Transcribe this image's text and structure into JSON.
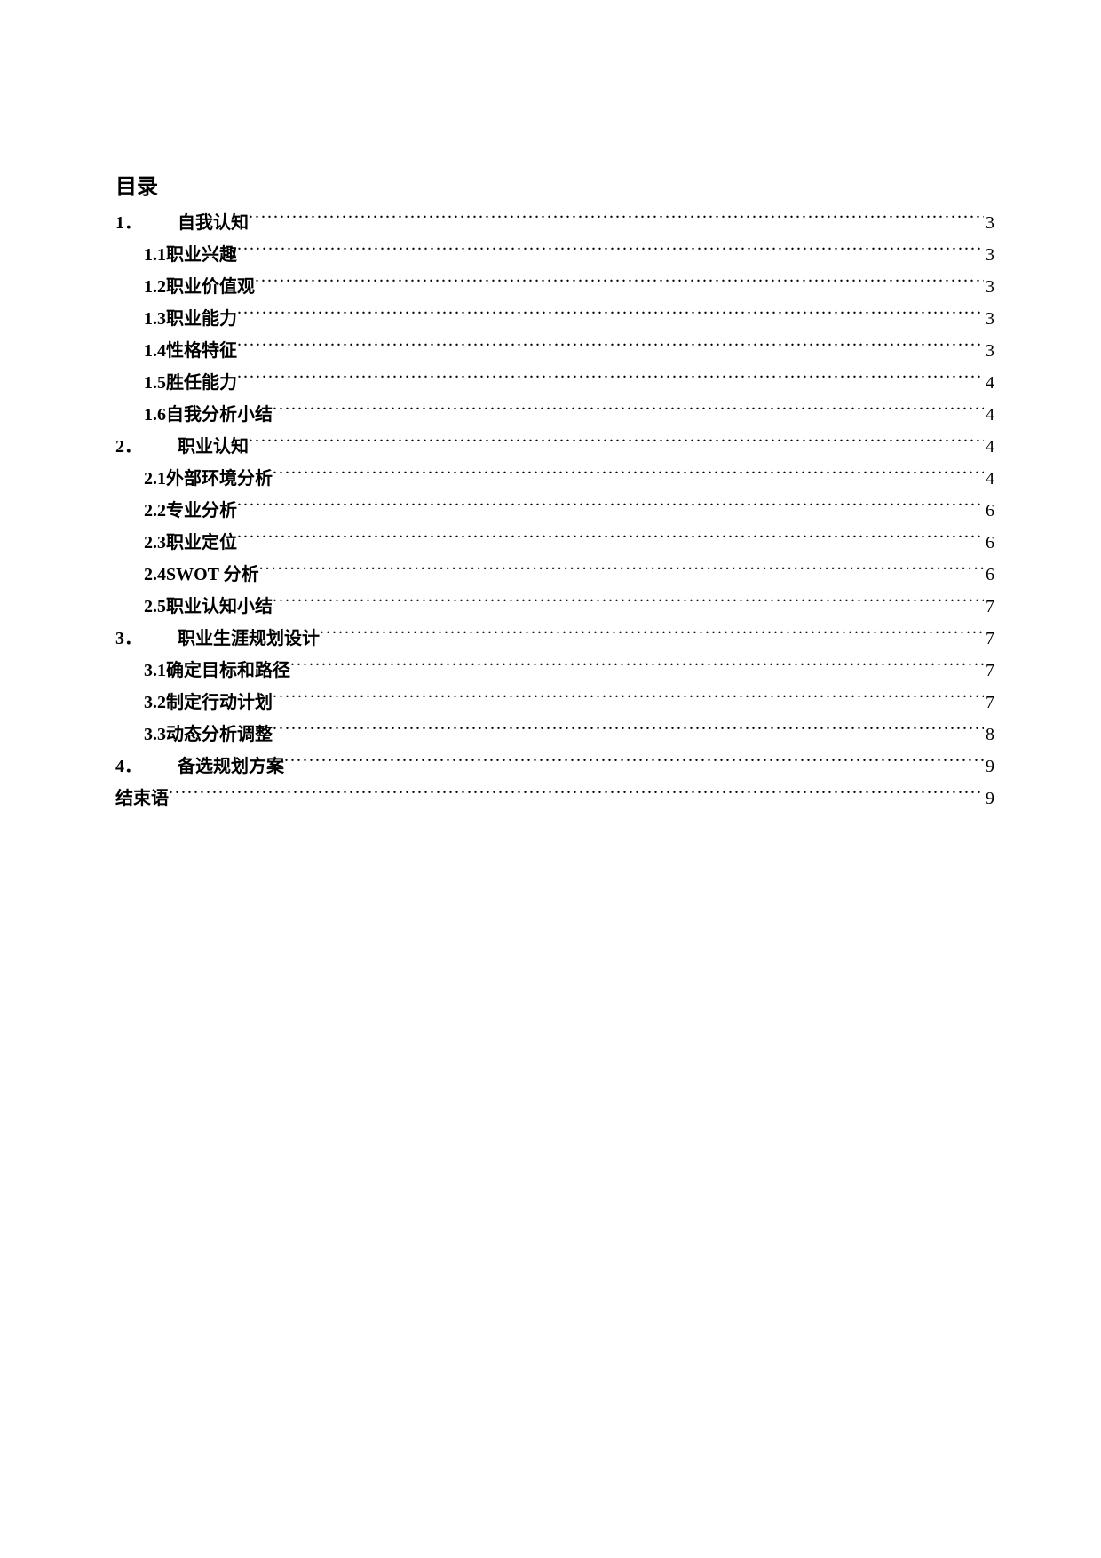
{
  "toc": {
    "title": "目录",
    "entries": [
      {
        "level": 1,
        "number": "1．",
        "text": "自我认知",
        "page": "3",
        "wideNumber": true
      },
      {
        "level": 2,
        "number": "1.1 ",
        "text": "职业兴趣",
        "page": "3"
      },
      {
        "level": 2,
        "number": "1.2 ",
        "text": "职业价值观",
        "page": "3"
      },
      {
        "level": 2,
        "number": "1.3 ",
        "text": "职业能力",
        "page": "3"
      },
      {
        "level": 2,
        "number": "1.4 ",
        "text": "性格特征",
        "page": "3"
      },
      {
        "level": 2,
        "number": "1.5 ",
        "text": "胜任能力",
        "page": "4"
      },
      {
        "level": 2,
        "number": "1.6 ",
        "text": "自我分析小结",
        "page": "4"
      },
      {
        "level": 1,
        "number": "2．",
        "text": "职业认知",
        "page": "4",
        "wideNumber": true
      },
      {
        "level": 2,
        "number": "2.1 ",
        "text": "外部环境分析",
        "page": "4"
      },
      {
        "level": 2,
        "number": "2.2 ",
        "text": "专业分析",
        "page": "6"
      },
      {
        "level": 2,
        "number": "2.3 ",
        "text": "职业定位",
        "page": "6"
      },
      {
        "level": 2,
        "number": "2.4 ",
        "text": "SWOT 分析",
        "page": "6"
      },
      {
        "level": 2,
        "number": "2.5 ",
        "text": "职业认知小结",
        "page": "7"
      },
      {
        "level": 1,
        "number": "3．",
        "text": "职业生涯规划设计",
        "page": "7",
        "wideNumber": true
      },
      {
        "level": 2,
        "number": "3.1 ",
        "text": "确定目标和路径",
        "page": "7"
      },
      {
        "level": 2,
        "number": "3.2 ",
        "text": "制定行动计划",
        "page": "7"
      },
      {
        "level": 2,
        "number": "3.3 ",
        "text": "动态分析调整",
        "page": "8"
      },
      {
        "level": 1,
        "number": "4．",
        "text": "备选规划方案",
        "page": "9",
        "wideNumber": true
      },
      {
        "level": 0,
        "number": "",
        "text": "结束语",
        "page": "9"
      }
    ]
  }
}
